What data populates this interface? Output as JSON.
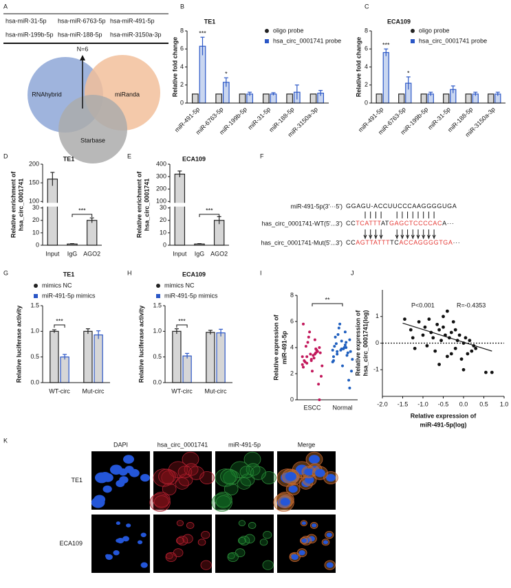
{
  "panel_labels": [
    "A",
    "B",
    "C",
    "D",
    "E",
    "F",
    "G",
    "H",
    "I",
    "J",
    "K"
  ],
  "table": {
    "rows": [
      [
        "hsa-miR-31-5p",
        "hsa-miR-6763-5p",
        "hsa-miR-491-5p"
      ],
      [
        "hsa-miR-199b-5p",
        "hsa-miR-188-5p",
        "hsa-miR-3150a-3p"
      ]
    ]
  },
  "venn": {
    "sets": [
      "RNAhybrid",
      "miRanda",
      "Starbase"
    ],
    "overlap_label": "N=6"
  },
  "alignment": {
    "rows": [
      {
        "label": "miR-491-5p(3'···5')",
        "segments": [
          {
            "text": "GGAGU-ACCUUCCCAAGGGGUGA",
            "color": "#111111"
          }
        ]
      },
      {
        "label": "has_circ_0001741-WT(5'...3')",
        "segments": [
          {
            "text": "CC",
            "color": "#111111"
          },
          {
            "text": "TCATTT",
            "color": "#e53935"
          },
          {
            "text": "AT",
            "color": "#111111"
          },
          {
            "text": "GAGCTCCCCAC",
            "color": "#e53935"
          },
          {
            "text": "A···",
            "color": "#111111"
          }
        ]
      },
      {
        "label": "has_circ_0001741-Mut(5'...3')",
        "segments": [
          {
            "text": "CC",
            "color": "#111111"
          },
          {
            "text": "AGTTATTT",
            "color": "#e53935"
          },
          {
            "text": "TC",
            "color": "#111111"
          },
          {
            "text": "ACC",
            "color": "#e53935"
          },
          {
            "text": "AGGGGTGA",
            "color": "#e53935"
          },
          {
            "text": "···",
            "color": "#111111"
          }
        ]
      }
    ]
  },
  "images": {
    "columns": [
      "DAPI",
      "hsa_circ_0001741",
      "miR-491-5p",
      "Merge"
    ],
    "rows": [
      "TE1",
      "ECA109"
    ]
  },
  "chart_data": [
    {
      "type": "bar",
      "title": "TE1",
      "ylabel": "Relative fold change",
      "categories": [
        "miR-491-5p",
        "miR-6763-5p",
        "miR-199b-5p",
        "miR-31-5p",
        "miR-188-5p",
        "miR-3150a-3p"
      ],
      "series": [
        {
          "name": "oligo probe",
          "color": "#222222",
          "fill": "#d6d6d6",
          "values": [
            1,
            1,
            1,
            1,
            1,
            1
          ]
        },
        {
          "name": "hsa_circ_0001741 probe",
          "color": "#2a56c6",
          "fill": "#c9d6f0",
          "values": [
            6.3,
            2.3,
            1.0,
            1.0,
            1.2,
            1.1
          ],
          "errors": [
            1.0,
            0.5,
            0.2,
            0.15,
            0.8,
            0.3
          ]
        }
      ],
      "ylim": [
        0,
        8
      ],
      "yticks": [
        0,
        2,
        4,
        6,
        8
      ],
      "significance": [
        "***",
        "*"
      ]
    },
    {
      "type": "bar",
      "title": "ECA109",
      "ylabel": "Relative fold change",
      "categories": [
        "miR-491-5p",
        "miR-6763-5p",
        "miR-199b-5p",
        "miR-31-5p",
        "miR-188-5p",
        "miR-3150a-3p"
      ],
      "series": [
        {
          "name": "oligo probe",
          "color": "#222222",
          "fill": "#d6d6d6",
          "values": [
            1,
            1,
            1,
            1,
            1,
            1
          ]
        },
        {
          "name": "hsa_circ_0001741 probe",
          "color": "#2a56c6",
          "fill": "#c9d6f0",
          "values": [
            5.6,
            2.2,
            1.0,
            1.5,
            1.0,
            1.0
          ],
          "errors": [
            0.4,
            0.7,
            0.2,
            0.4,
            0.2,
            0.2
          ]
        }
      ],
      "ylim": [
        0,
        8
      ],
      "yticks": [
        0,
        2,
        4,
        6,
        8
      ],
      "significance": [
        "***",
        "*"
      ]
    },
    {
      "type": "bar",
      "title": "TE1",
      "ylabel": [
        "Relative enrichment of",
        "hsa_circ_0001741"
      ],
      "categories": [
        "Input",
        "IgG",
        "AGO2"
      ],
      "values": [
        160,
        1,
        20
      ],
      "errors": [
        18,
        0.3,
        2
      ],
      "color": "#222222",
      "fill": "#d6d6d6",
      "ylim": [
        0,
        200
      ],
      "ybreak": [
        30,
        100
      ],
      "yticks": [
        0,
        10,
        20,
        30,
        100,
        150,
        200
      ],
      "significance": [
        "***"
      ]
    },
    {
      "type": "bar",
      "title": "ECA109",
      "ylabel": [
        "Relative enrichment of",
        "hsa_circ_0001741"
      ],
      "categories": [
        "Input",
        "IgG",
        "AGO2"
      ],
      "values": [
        320,
        1,
        20
      ],
      "errors": [
        25,
        0.3,
        3
      ],
      "color": "#222222",
      "fill": "#d6d6d6",
      "ylim": [
        0,
        400
      ],
      "ybreak": [
        30,
        100
      ],
      "yticks": [
        0,
        10,
        20,
        30,
        100,
        200,
        300,
        400
      ],
      "significance": [
        "***"
      ]
    },
    {
      "type": "bar",
      "title": "TE1",
      "ylabel": "Relative luciferase activity",
      "categories": [
        "WT-circ",
        "Mut-circ"
      ],
      "series": [
        {
          "name": "mimics NC",
          "color": "#222222",
          "fill": "#d6d6d6",
          "values": [
            1.0,
            1.0
          ],
          "errors": [
            0.03,
            0.05
          ]
        },
        {
          "name": "miR-491-5p mimics",
          "color": "#2a56c6",
          "fill": "#d6d6d6",
          "values": [
            0.5,
            0.93
          ],
          "errors": [
            0.05,
            0.08
          ]
        }
      ],
      "ylim": [
        0,
        1.5
      ],
      "yticks": [
        {
          "value": 0,
          "label": "0.0"
        },
        0.5,
        {
          "value": 1,
          "label": "1.0"
        },
        1.5
      ],
      "significance": [
        "***"
      ]
    },
    {
      "type": "bar",
      "title": "ECA109",
      "ylabel": "Relative luciferase activity",
      "categories": [
        "WT-circ",
        "Mut-circ"
      ],
      "series": [
        {
          "name": "mimics NC",
          "color": "#222222",
          "fill": "#d6d6d6",
          "values": [
            1.0,
            0.98
          ],
          "errors": [
            0.05,
            0.04
          ]
        },
        {
          "name": "miR-491-5p mimics",
          "color": "#2a56c6",
          "fill": "#d6d6d6",
          "values": [
            0.52,
            0.97
          ],
          "errors": [
            0.05,
            0.07
          ]
        }
      ],
      "ylim": [
        0,
        1.5
      ],
      "yticks": [
        {
          "value": 0,
          "label": "0.0"
        },
        0.5,
        {
          "value": 1,
          "label": "1.0"
        },
        1.5
      ],
      "significance": [
        "***"
      ]
    },
    {
      "type": "strip",
      "ylabel": [
        "Relative expression of",
        "miR-491-5p"
      ],
      "categories": [
        "ESCC",
        "Normal"
      ],
      "colors": [
        "#c2185b",
        "#1f5fbf"
      ],
      "values": [
        [
          3.3,
          3.5,
          2.8,
          4.0,
          3.1,
          2.5,
          3.9,
          4.4,
          3.6,
          2.2,
          3.0,
          3.8,
          4.8,
          1.8,
          3.4,
          2.9,
          3.7,
          5.2,
          2.6,
          3.2,
          4.1,
          1.2,
          3.5,
          2.7,
          4.6,
          3.3,
          0.0,
          3.0,
          5.8,
          3.6
        ],
        [
          3.8,
          4.2,
          3.5,
          4.6,
          3.9,
          3.0,
          4.4,
          5.0,
          3.7,
          2.6,
          4.1,
          3.4,
          5.5,
          2.2,
          3.9,
          4.8,
          3.6,
          5.8,
          3.1,
          4.0,
          4.3,
          1.5,
          3.8,
          2.9,
          5.2,
          3.7,
          0.9,
          4.5,
          3.3,
          4.0
        ]
      ],
      "ylim": [
        0,
        8
      ],
      "yticks": [
        0,
        2,
        4,
        6,
        8
      ],
      "significance": [
        "**"
      ]
    },
    {
      "type": "scatter",
      "xlabel": [
        "Relative expression of",
        "miR-491-5p(log)"
      ],
      "ylabel": [
        "Relative expression of",
        "hsa_circ_0001741(log)"
      ],
      "annotations": [
        "P<0.001",
        "R=-0.4353"
      ],
      "color": "#111111",
      "x": [
        -1.45,
        -1.3,
        -1.2,
        -1.1,
        -1.0,
        -0.95,
        -0.9,
        -0.85,
        -0.8,
        -0.75,
        -0.7,
        -0.65,
        -0.6,
        -0.55,
        -0.5,
        -0.45,
        -0.4,
        -0.35,
        -0.3,
        -0.25,
        -0.2,
        -0.15,
        -0.1,
        -0.05,
        0.0,
        0.05,
        0.1,
        0.15,
        0.2,
        0.25,
        0.3,
        -0.6,
        -0.4,
        -0.2,
        0.0,
        -0.3,
        0.55,
        0.7,
        -1.25,
        -0.5
      ],
      "y": [
        0.9,
        0.5,
        -0.2,
        0.8,
        0.3,
        0.6,
        -0.1,
        0.9,
        0.4,
        0.2,
        -0.3,
        0.7,
        0.5,
        0.1,
        0.6,
        0.3,
        -0.5,
        0.2,
        0.4,
        0.8,
        -0.2,
        0.1,
        0.3,
        -0.6,
        0.0,
        0.2,
        -0.4,
        0.1,
        -0.3,
        -0.1,
        -0.2,
        -0.8,
        1.2,
        0.5,
        -1.0,
        -0.4,
        -1.1,
        -1.1,
        0.2,
        1.0
      ],
      "fit_line": {
        "x": [
          -1.5,
          0.7
        ],
        "y": [
          0.75,
          -0.3
        ]
      },
      "xlim": [
        -2,
        1
      ],
      "xticks": [
        {
          "value": -2,
          "label": "-2.0"
        },
        -1.5,
        {
          "value": -1,
          "label": "-1.0"
        },
        -0.5,
        {
          "value": 0,
          "label": "0.0"
        },
        0.5,
        {
          "value": 1,
          "label": "1.0"
        }
      ],
      "ylim": [
        -2,
        2
      ],
      "yticks": [
        -1,
        0,
        1
      ],
      "zero_line": true
    }
  ]
}
